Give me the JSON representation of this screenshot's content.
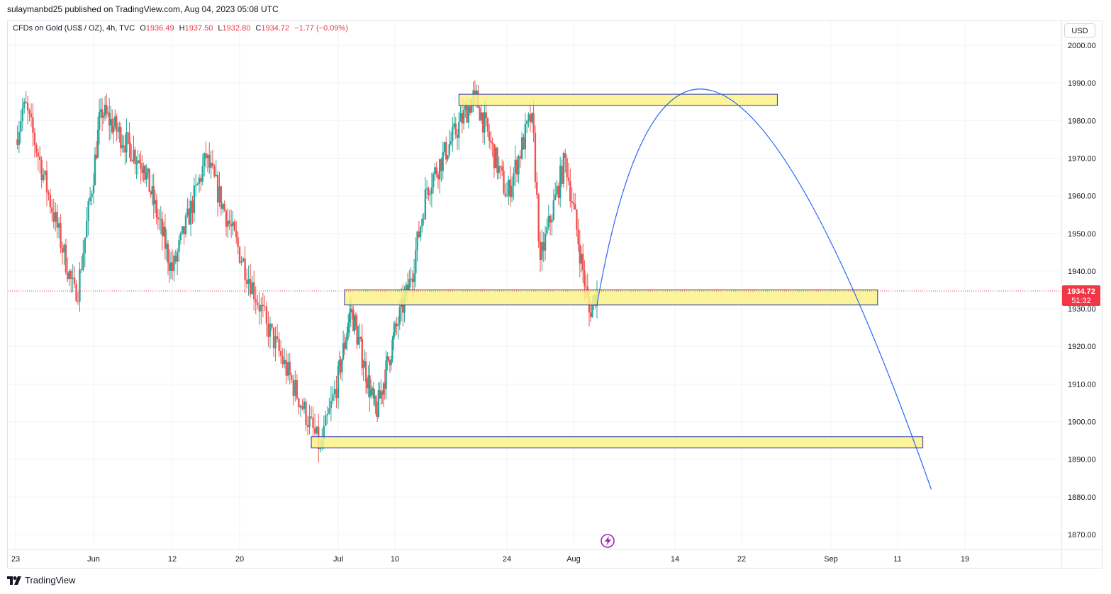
{
  "header": {
    "published_by": "sulaymanbd25 published on TradingView.com, Aug 04, 2023 05:08 UTC"
  },
  "legend": {
    "symbol": "CFDs on Gold (US$ / OZ), 4h, TVC",
    "open_label": "O",
    "open": "1936.49",
    "high_label": "H",
    "high": "1937.50",
    "low_label": "L",
    "low": "1932.80",
    "close_label": "C",
    "close": "1934.72",
    "change": "−1.77 (−0.09%)"
  },
  "currency": "USD",
  "price_tag": {
    "price": "1934.72",
    "countdown": "51:32"
  },
  "branding": {
    "name": "TradingView"
  },
  "colors": {
    "up": "#26a69a",
    "down": "#ef5350",
    "zone_fill": "#fcf288",
    "zone_border": "#2a3ba8",
    "projection": "#2962ff",
    "price_line": "#f23645"
  },
  "chart_data": {
    "type": "candlestick",
    "timeframe": "4h",
    "y_ticks": [
      "1870.00",
      "1880.00",
      "1890.00",
      "1900.00",
      "1910.00",
      "1920.00",
      "1930.00",
      "1940.00",
      "1950.00",
      "1960.00",
      "1970.00",
      "1980.00",
      "1990.00",
      "2000.00"
    ],
    "ylim": [
      1864,
      2009
    ],
    "x_ticks": [
      "23",
      "Jun",
      "12",
      "20",
      "Jul",
      "10",
      "24",
      "Aug",
      "14",
      "22",
      "Sep",
      "11",
      "19"
    ],
    "key_points": [
      {
        "date": "May 23",
        "price": 1975
      },
      {
        "date": "May 24",
        "price": 1985
      },
      {
        "date": "May 30",
        "price": 1932
      },
      {
        "date": "Jun 02",
        "price": 1983
      },
      {
        "date": "Jun 08",
        "price": 1968
      },
      {
        "date": "Jun 12",
        "price": 1940
      },
      {
        "date": "Jun 16",
        "price": 1970
      },
      {
        "date": "Jun 23",
        "price": 1926
      },
      {
        "date": "Jun 29",
        "price": 1893
      },
      {
        "date": "Jul 03",
        "price": 1930
      },
      {
        "date": "Jul 07",
        "price": 1902
      },
      {
        "date": "Jul 12",
        "price": 1938
      },
      {
        "date": "Jul 14",
        "price": 1962
      },
      {
        "date": "Jul 20",
        "price": 1987
      },
      {
        "date": "Jul 24",
        "price": 1960
      },
      {
        "date": "Jul 27",
        "price": 1982
      },
      {
        "date": "Jul 28",
        "price": 1943
      },
      {
        "date": "Jul 31",
        "price": 1970
      },
      {
        "date": "Aug 03",
        "price": 1929
      },
      {
        "date": "Aug 04",
        "price": 1934.72
      }
    ],
    "last_price": 1934.72,
    "zones": [
      {
        "from": "Jul 18",
        "to": "Aug 26",
        "low": 1984,
        "high": 1987
      },
      {
        "from": "Jul 02",
        "to": "Sep 08",
        "low": 1931,
        "high": 1935
      },
      {
        "from": "Jun 28",
        "to": "Sep 14",
        "low": 1893,
        "high": 1896
      }
    ],
    "projection": [
      {
        "date": "Aug 04",
        "price": 1931
      },
      {
        "date": "Aug 20",
        "price": 1986.5
      },
      {
        "date": "Sep 15",
        "price": 1882
      }
    ]
  }
}
